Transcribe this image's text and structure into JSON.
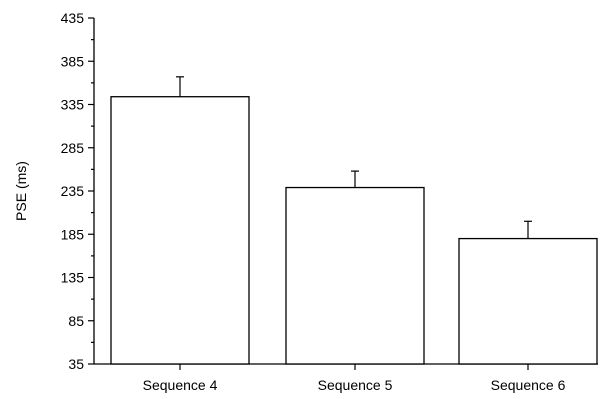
{
  "chart_data": {
    "type": "bar",
    "title": "",
    "xlabel": "",
    "ylabel": "PSE (ms)",
    "categories": [
      "Sequence 4",
      "Sequence 5",
      "Sequence 6"
    ],
    "values": [
      344,
      239,
      180
    ],
    "error_upper": [
      367,
      258,
      200
    ],
    "ylim": [
      35,
      435
    ],
    "yticks": [
      "35",
      "85",
      "135",
      "185",
      "235",
      "285",
      "335",
      "385",
      "435"
    ],
    "grid": false,
    "legend": "none",
    "bar_fill": "#ffffff",
    "bar_stroke": "#000000"
  }
}
